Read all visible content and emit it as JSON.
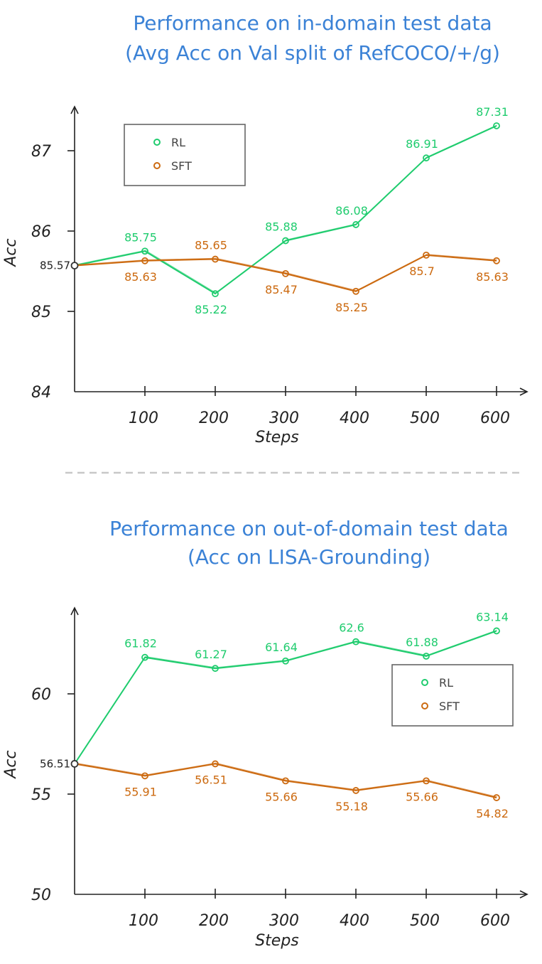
{
  "colors": {
    "rl": "#1fcc6e",
    "sft": "#cc6a10",
    "title": "#3b82d6",
    "divider": "#c8c8c8"
  },
  "chart_data": [
    {
      "type": "line",
      "title": [
        "Performance on in-domain test data",
        "(Avg Acc on Val split of RefCOCO/+/g)"
      ],
      "xlabel": "Steps",
      "ylabel": "Acc",
      "x": [
        0,
        100,
        200,
        300,
        400,
        500,
        600
      ],
      "x_tick_labels": [
        "100",
        "200",
        "300",
        "400",
        "500",
        "600"
      ],
      "y_ticks": [
        84,
        85,
        86,
        87
      ],
      "ylim": [
        84,
        87.5
      ],
      "start_label": "85.57",
      "legend": [
        "RL",
        "SFT"
      ],
      "legend_position": "top-left",
      "series": [
        {
          "name": "RL",
          "values": [
            85.57,
            85.75,
            85.22,
            85.88,
            86.08,
            86.91,
            87.31
          ],
          "labels": [
            "",
            "85.75",
            "85.22",
            "85.88",
            "86.08",
            "86.91",
            "87.31"
          ],
          "label_side": [
            "",
            "above",
            "below",
            "above",
            "above",
            "above",
            "above"
          ]
        },
        {
          "name": "SFT",
          "values": [
            85.57,
            85.63,
            85.65,
            85.47,
            85.25,
            85.7,
            85.63
          ],
          "labels": [
            "",
            "85.63",
            "85.65",
            "85.47",
            "85.25",
            "85.7",
            "85.63"
          ],
          "label_side": [
            "",
            "below",
            "above",
            "below",
            "below",
            "below",
            "below"
          ]
        }
      ]
    },
    {
      "type": "line",
      "title": [
        "Performance on out-of-domain test data",
        "(Acc on LISA-Grounding)"
      ],
      "xlabel": "Steps",
      "ylabel": "Acc",
      "x": [
        0,
        100,
        200,
        300,
        400,
        500,
        600
      ],
      "x_tick_labels": [
        "100",
        "200",
        "300",
        "400",
        "500",
        "600"
      ],
      "y_ticks": [
        50,
        55,
        60
      ],
      "ylim": [
        50,
        64.8
      ],
      "start_label": "56.51",
      "legend": [
        "RL",
        "SFT"
      ],
      "legend_position": "middle-right",
      "series": [
        {
          "name": "RL",
          "values": [
            56.51,
            61.82,
            61.27,
            61.64,
            62.6,
            61.88,
            63.14
          ],
          "labels": [
            "",
            "61.82",
            "61.27",
            "61.64",
            "62.6",
            "61.88",
            "63.14"
          ],
          "label_side": [
            "",
            "above",
            "above",
            "above",
            "above",
            "above",
            "above"
          ]
        },
        {
          "name": "SFT",
          "values": [
            56.51,
            55.91,
            56.51,
            55.66,
            55.18,
            55.66,
            54.82
          ],
          "labels": [
            "",
            "55.91",
            "56.51",
            "55.66",
            "55.18",
            "55.66",
            "54.82"
          ],
          "label_side": [
            "",
            "below",
            "below",
            "below",
            "below",
            "below",
            "below"
          ]
        }
      ]
    }
  ]
}
